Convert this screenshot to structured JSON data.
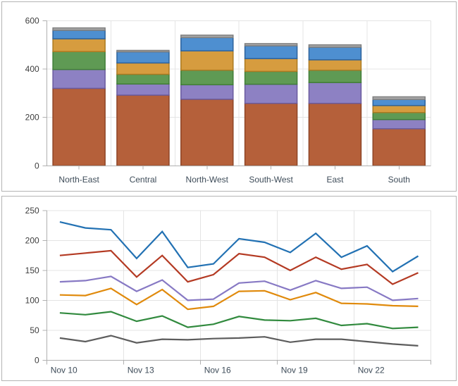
{
  "background": "#ffffff",
  "panel_border_color": "#b4b4b4",
  "axis_style": {
    "axis_line_color": "#b0b0b0",
    "grid_color": "#e4e4e4",
    "number_label_color": "#3d3d3d",
    "category_label_color": "#3e4c59"
  },
  "chart_data": [
    {
      "type": "bar",
      "stacked": true,
      "title": "",
      "legend": "none",
      "grid": true,
      "categories": [
        "North-East",
        "Central",
        "North-West",
        "South-West",
        "East",
        "South"
      ],
      "series": [
        {
          "name": "stack-level-1-rust",
          "color": "#b5603a",
          "border_color": "#8e4526",
          "values": [
            320,
            292,
            275,
            258,
            258,
            153
          ]
        },
        {
          "name": "stack-level-2-purple",
          "color": "#8d81c3",
          "border_color": "#6a5b9e",
          "values": [
            78,
            46,
            60,
            79,
            86,
            38
          ]
        },
        {
          "name": "stack-level-3-green",
          "color": "#5f9a54",
          "border_color": "#417e38",
          "values": [
            74,
            40,
            60,
            53,
            51,
            29
          ]
        },
        {
          "name": "stack-level-4-gold",
          "color": "#d69c3f",
          "border_color": "#ab7a21",
          "values": [
            53,
            47,
            80,
            53,
            43,
            29
          ]
        },
        {
          "name": "stack-level-5-blue",
          "color": "#4e8fd0",
          "border_color": "#2e639c",
          "values": [
            35,
            46,
            55,
            53,
            52,
            25
          ]
        },
        {
          "name": "stack-level-6-gray",
          "color": "#a8a8a8",
          "border_color": "#7f7f7f",
          "values": [
            10,
            6,
            10,
            9,
            10,
            11
          ]
        }
      ],
      "totals": [
        570,
        477,
        540,
        505,
        500,
        285
      ],
      "y_axis": {
        "min": 0,
        "max": 600,
        "tick_step": 200,
        "tick_labels": [
          "0",
          "200",
          "400",
          "600"
        ]
      }
    },
    {
      "type": "line",
      "title": "",
      "legend": "none",
      "grid": true,
      "x": [
        "Nov 10",
        "Nov 11",
        "Nov 12",
        "Nov 13",
        "Nov 14",
        "Nov 15",
        "Nov 16",
        "Nov 17",
        "Nov 18",
        "Nov 19",
        "Nov 20",
        "Nov 21",
        "Nov 22",
        "Nov 23",
        "Nov 24"
      ],
      "x_tick_labels": [
        "Nov 10",
        "Nov 13",
        "Nov 16",
        "Nov 19",
        "Nov 22"
      ],
      "x_tick_every": 3,
      "series": [
        {
          "name": "line-blue",
          "color": "#2271b3",
          "values": [
            231,
            221,
            218,
            170,
            215,
            155,
            161,
            203,
            197,
            180,
            212,
            172,
            191,
            148,
            174
          ]
        },
        {
          "name": "line-red",
          "color": "#b43a23",
          "values": [
            175,
            179,
            183,
            139,
            175,
            131,
            143,
            178,
            172,
            150,
            172,
            152,
            160,
            127,
            146
          ]
        },
        {
          "name": "line-purple",
          "color": "#8779c4",
          "values": [
            131,
            133,
            140,
            115,
            134,
            100,
            102,
            129,
            132,
            117,
            133,
            120,
            122,
            100,
            103
          ]
        },
        {
          "name": "line-orange",
          "color": "#e08a0c",
          "values": [
            109,
            108,
            120,
            93,
            118,
            85,
            90,
            115,
            116,
            101,
            113,
            95,
            94,
            91,
            90
          ]
        },
        {
          "name": "line-green",
          "color": "#318a3e",
          "values": [
            79,
            76,
            81,
            65,
            74,
            55,
            60,
            73,
            67,
            66,
            70,
            58,
            61,
            53,
            55
          ]
        },
        {
          "name": "line-gray",
          "color": "#5d5d5d",
          "values": [
            37,
            31,
            41,
            29,
            35,
            34,
            36,
            37,
            39,
            30,
            35,
            35,
            31,
            27,
            24
          ]
        }
      ],
      "y_axis": {
        "min": 0,
        "max": 250,
        "tick_step": 50,
        "tick_labels": [
          "0",
          "50",
          "100",
          "150",
          "200",
          "250"
        ]
      }
    }
  ]
}
